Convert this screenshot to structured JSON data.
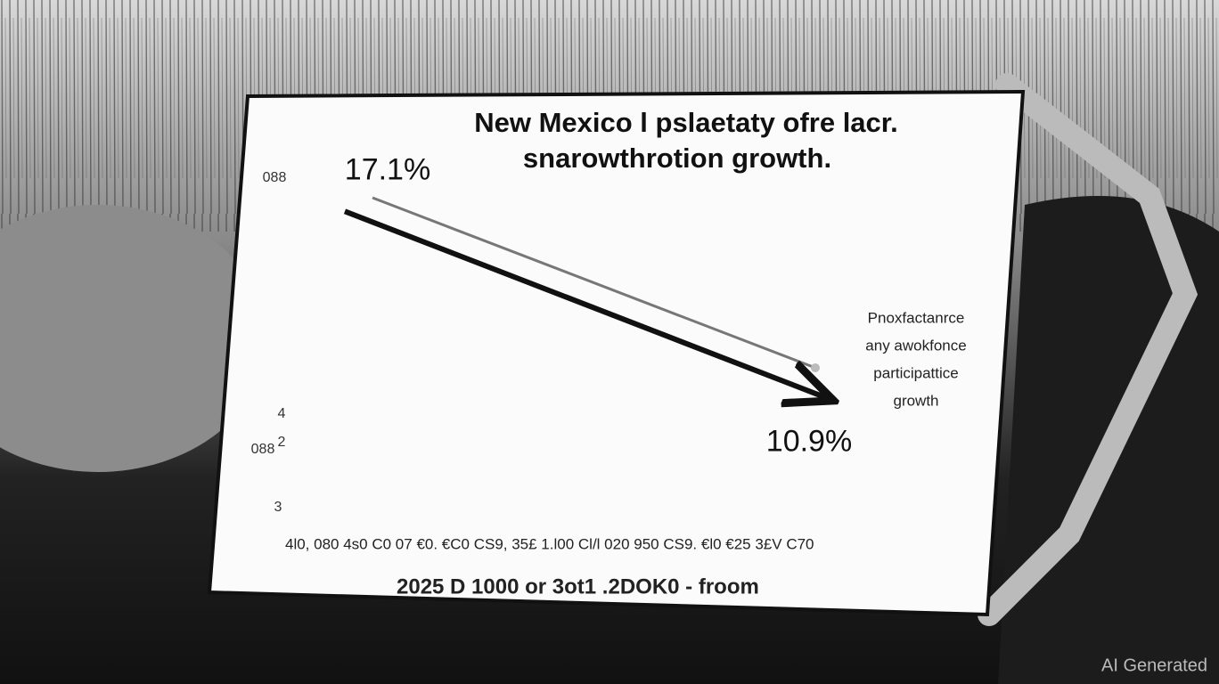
{
  "chart_data": {
    "type": "line",
    "title": [
      "New Mexico l pslaetaty ofre lacr.",
      "snarowthrotion growth."
    ],
    "categories": [
      null,
      null
    ],
    "values": [
      17.1,
      10.9
    ],
    "value_labels": [
      "17.1%",
      "10.9%"
    ],
    "color": "#111111",
    "ylim": [
      7,
      18.2
    ],
    "y_side_labels": [
      "088",
      "4",
      "2",
      "088",
      "3"
    ],
    "x_axis_text": "4l0, 080 4s0 C0 07 €0. €C0 CS9, 35£ 1.l00 Cl/l 020 950 CS9. €l0 €25 3£V C70",
    "x_label": "2025 D 1000 or 3ot1 .2DOK0 - froom",
    "annotation": [
      "Pnoxfactanrce",
      "any awokfonce",
      "participattice",
      "growth"
    ],
    "watermark": "AI Generated"
  }
}
